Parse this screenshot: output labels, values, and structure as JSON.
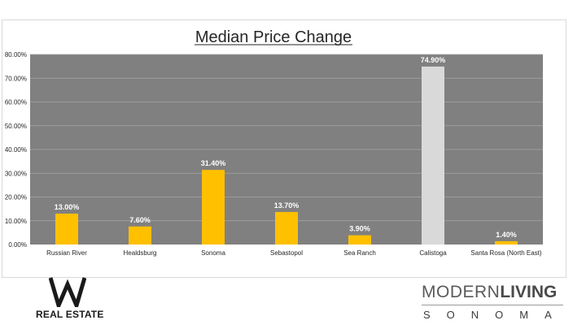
{
  "chart_data": {
    "type": "bar",
    "title": "Median Price Change",
    "xlabel": "",
    "ylabel": "",
    "categories": [
      "Russian River",
      "Healdsburg",
      "Sonoma",
      "Sebastopol",
      "Sea Ranch",
      "Calistoga",
      "Santa Rosa (North East)"
    ],
    "values": [
      13.0,
      7.6,
      31.4,
      13.7,
      3.9,
      74.9,
      1.4
    ],
    "data_labels": [
      "13.00%",
      "7.60%",
      "31.40%",
      "13.70%",
      "3.90%",
      "74.90%",
      "1.40%"
    ],
    "ylim": [
      0,
      80
    ],
    "yticks": [
      "0.00%",
      "10.00%",
      "20.00%",
      "30.00%",
      "40.00%",
      "50.00%",
      "60.00%",
      "70.00%",
      "80.00%"
    ],
    "grid": true,
    "legend": "none",
    "colors": {
      "plot_background": "#808080",
      "bar": "#ffc000",
      "highlight_bar": "#d9d9d9",
      "gridline": "#a6a6a6",
      "data_label": "#ffffff"
    },
    "highlight_category": "Calistoga"
  },
  "logos": {
    "left_brand": "REAL ESTATE",
    "right_brand_thin": "MODERN",
    "right_brand_bold": "LIVING",
    "right_brand_sub": "SONOMA"
  }
}
